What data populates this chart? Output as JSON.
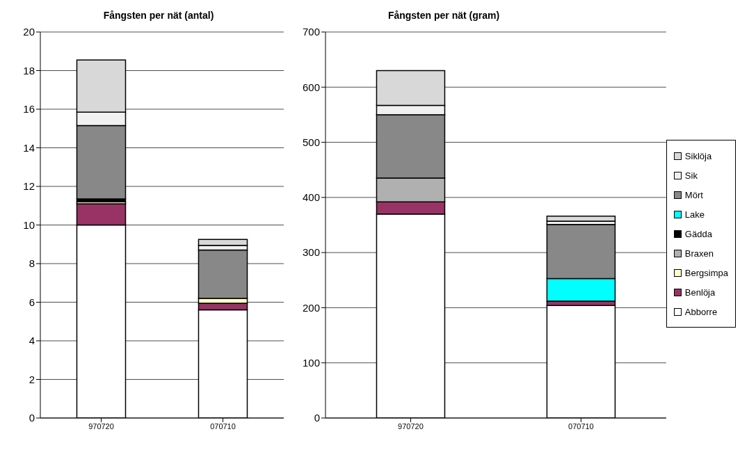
{
  "chart_data": [
    {
      "type": "bar",
      "title": "Fångsten per nät (antal)",
      "categories": [
        "970720",
        "070710"
      ],
      "stacked": true,
      "ylim": [
        0,
        20
      ],
      "yticks": [
        0,
        2,
        4,
        6,
        8,
        10,
        12,
        14,
        16,
        18,
        20
      ],
      "grid": "y",
      "legend": false,
      "series": [
        {
          "color": "#ffffff",
          "values": [
            10,
            5.6
          ]
        },
        {
          "color": "#993366",
          "values": [
            1.1,
            0.35
          ]
        },
        {
          "color": "#ffffcc",
          "values": [
            0.1,
            0.25
          ]
        },
        {
          "color": "#b0b0b0",
          "values": [
            0,
            0
          ]
        },
        {
          "color": "#000000",
          "values": [
            0.15,
            0
          ]
        },
        {
          "color": "#00ffff",
          "values": [
            0,
            0
          ]
        },
        {
          "color": "#888888",
          "values": [
            3.8,
            2.5
          ]
        },
        {
          "color": "#f0f0f0",
          "values": [
            0.7,
            0.25
          ]
        },
        {
          "color": "#d8d8d8",
          "values": [
            2.7,
            0.3
          ]
        }
      ]
    },
    {
      "type": "bar",
      "title": "Fångsten per nät (gram)",
      "categories": [
        "970720",
        "070710"
      ],
      "stacked": true,
      "ylim": [
        0,
        700
      ],
      "yticks": [
        0,
        100,
        200,
        300,
        400,
        500,
        600,
        700
      ],
      "grid": "y",
      "legend": "right",
      "series": [
        {
          "name": "Abborre",
          "color": "#ffffff",
          "values": [
            370,
            204
          ]
        },
        {
          "name": "Benlöja",
          "color": "#993366",
          "values": [
            22,
            8
          ]
        },
        {
          "name": "Bergsimpa",
          "color": "#ffffcc",
          "values": [
            0,
            0
          ]
        },
        {
          "name": "Braxen",
          "color": "#b0b0b0",
          "values": [
            43,
            0
          ]
        },
        {
          "name": "Gädda",
          "color": "#000000",
          "values": [
            0,
            0
          ]
        },
        {
          "name": "Lake",
          "color": "#00ffff",
          "values": [
            0,
            41
          ]
        },
        {
          "name": "Mört",
          "color": "#888888",
          "values": [
            115,
            98
          ]
        },
        {
          "name": "Sik",
          "color": "#f0f0f0",
          "values": [
            17,
            6
          ]
        },
        {
          "name": "Siklöja",
          "color": "#d8d8d8",
          "values": [
            63,
            9
          ]
        }
      ]
    }
  ]
}
